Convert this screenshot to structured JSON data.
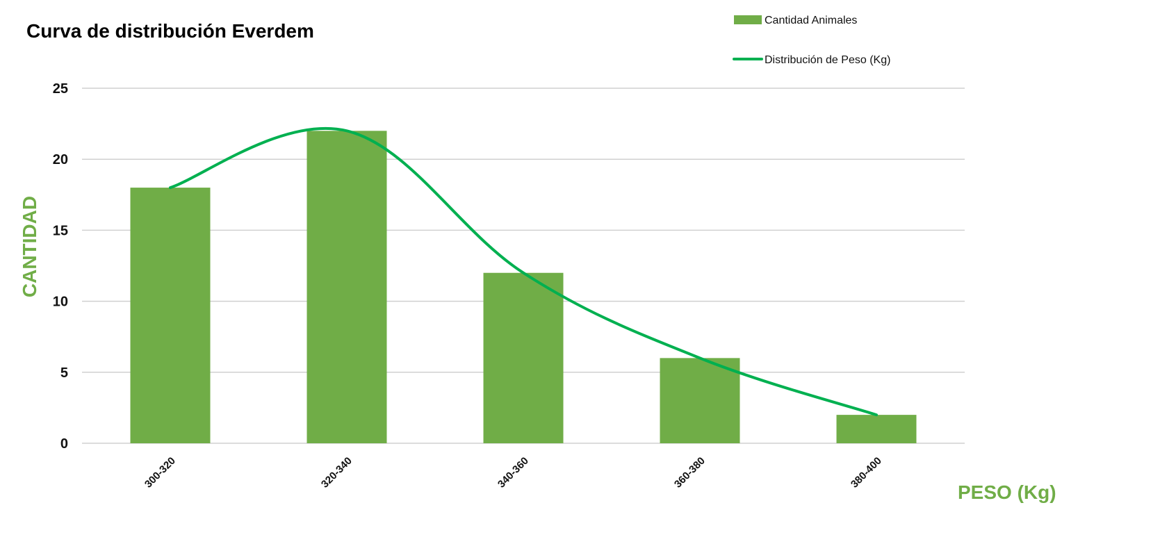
{
  "chart_data": {
    "type": "bar",
    "title": "Curva de distribución Everdem",
    "xlabel": "PESO (Kg)",
    "ylabel": "CANTIDAD",
    "categories": [
      "300-320",
      "320-340",
      "340-360",
      "360-380",
      "380-400"
    ],
    "series": [
      {
        "name": "Cantidad Animales",
        "type": "bar",
        "values": [
          18,
          22,
          12,
          6,
          2
        ]
      },
      {
        "name": "Distribución de Peso (Kg)",
        "type": "line",
        "smooth": true,
        "values": [
          18,
          22,
          12,
          6,
          2
        ]
      }
    ],
    "ylim": [
      0,
      25
    ],
    "yticks": [
      0,
      5,
      10,
      15,
      20,
      25
    ],
    "grid": true,
    "legend": "top-right"
  },
  "colors": {
    "bar": "#70ad47",
    "line": "#00b050",
    "axis_label": "#70ad47",
    "grid": "#d0d0d0"
  }
}
